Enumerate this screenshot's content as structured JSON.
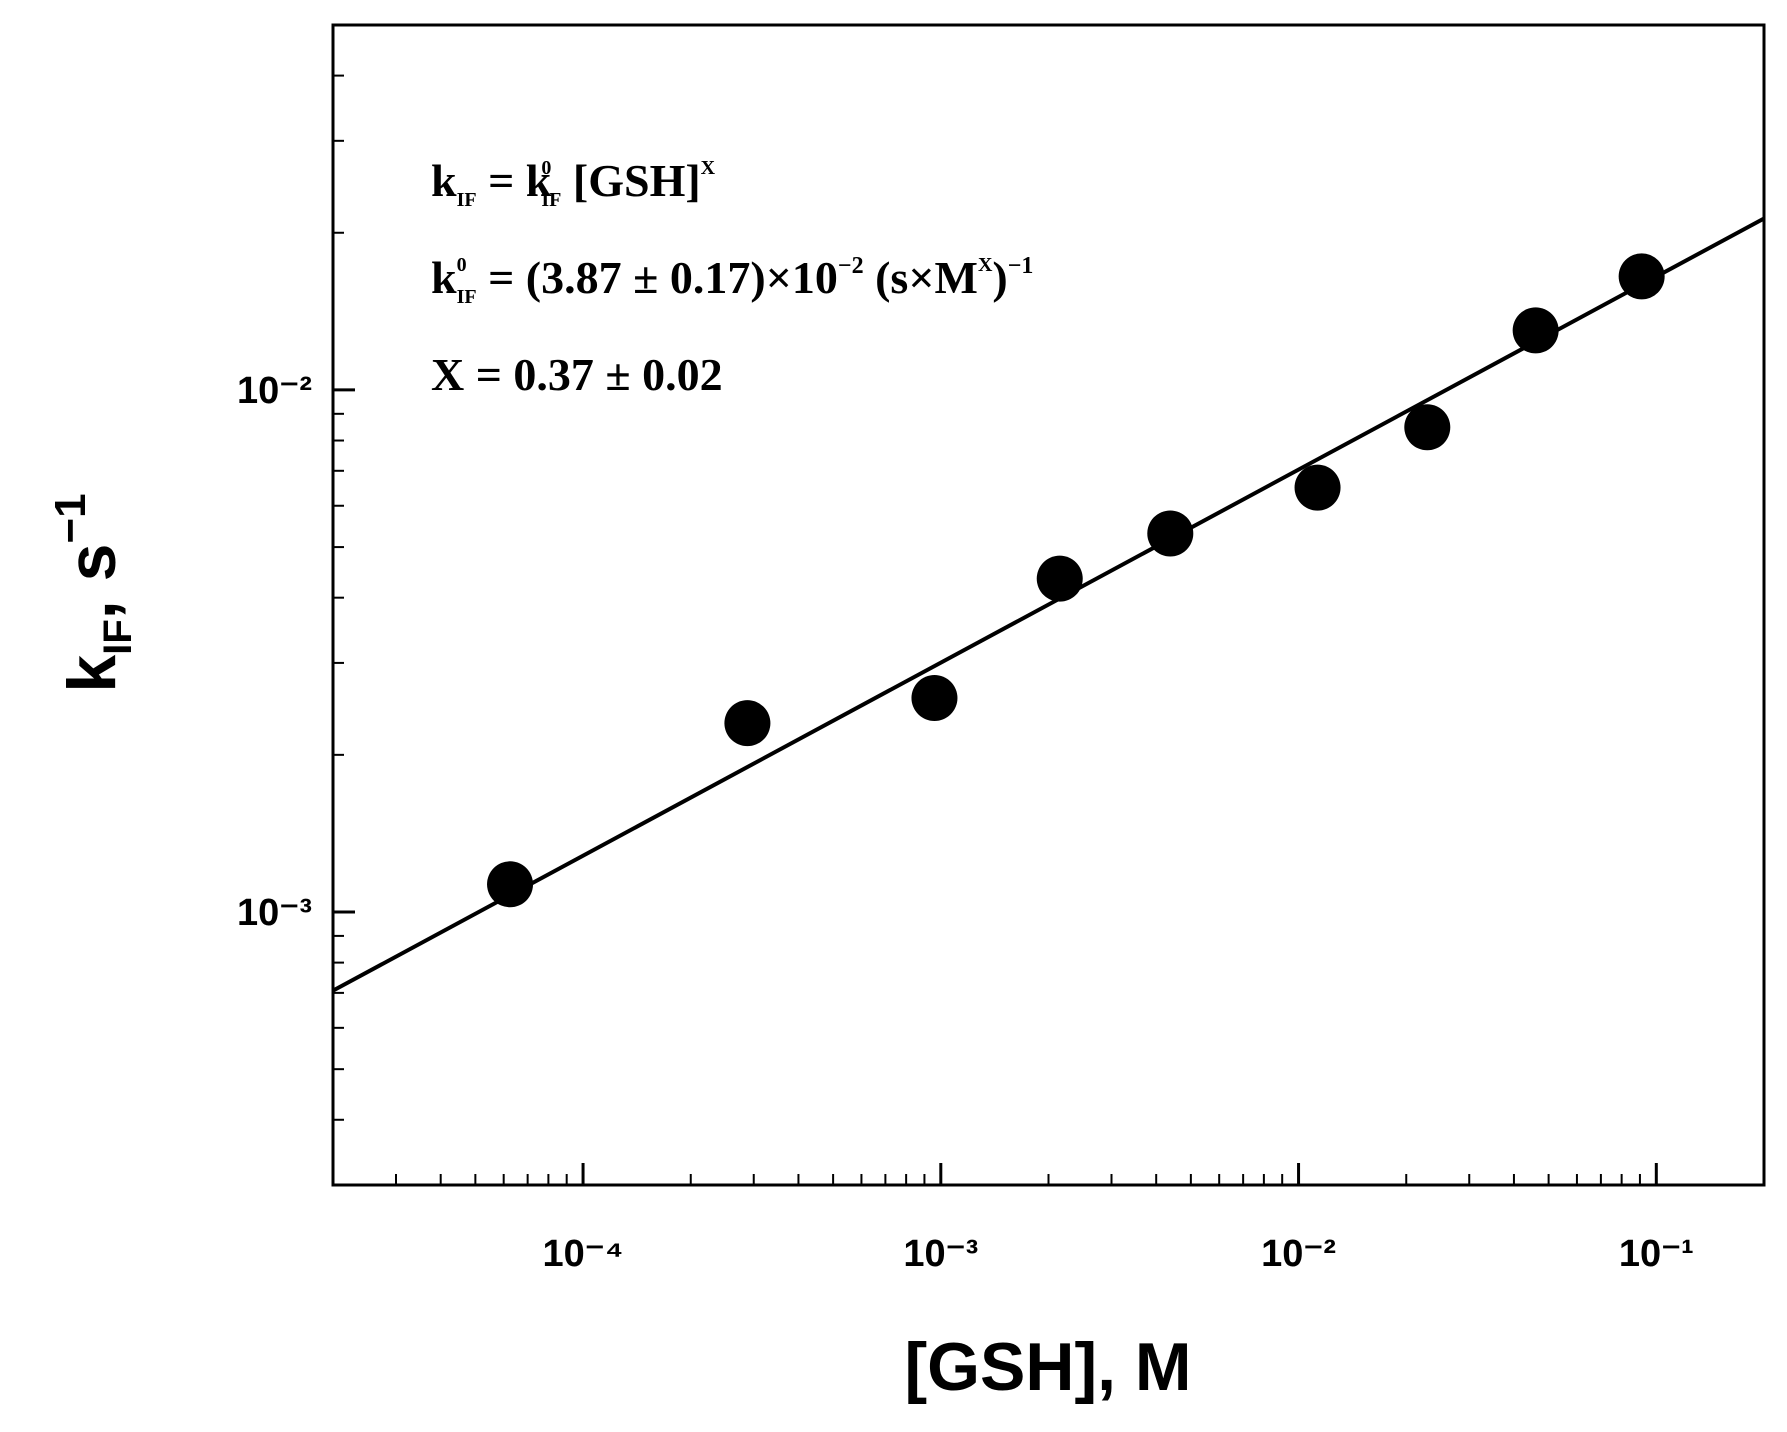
{
  "chart_data": {
    "type": "scatter",
    "x_label": "[GSH], M",
    "y_label": [
      "k",
      "IF",
      ", s",
      "−1"
    ],
    "annotations": [
      [
        "k",
        "IF",
        " = k",
        "0",
        "IF",
        " [GSH]",
        "X"
      ],
      [
        "k",
        "0",
        "IF",
        " = (3.87 ± 0.17)×10",
        "−2",
        " (s×M",
        "X",
        ")",
        "−1"
      ],
      [
        "X = 0.37 ± 0.02"
      ]
    ],
    "xscale": "log",
    "yscale": "log",
    "xlim": [
      2e-05,
      0.2
    ],
    "ylim": [
      0.0003,
      0.05
    ],
    "xticks": [
      {
        "value": 0.0001,
        "label": "10⁻⁴"
      },
      {
        "value": 0.001,
        "label": "10⁻³"
      },
      {
        "value": 0.01,
        "label": "10⁻²"
      },
      {
        "value": 0.1,
        "label": "10⁻¹"
      }
    ],
    "yticks": [
      {
        "value": 0.001,
        "label": "10⁻³"
      },
      {
        "value": 0.01,
        "label": "10⁻²"
      }
    ],
    "xminor": [
      3e-05,
      4e-05,
      5e-05,
      6e-05,
      7e-05,
      8e-05,
      9e-05,
      0.0002,
      0.0003,
      0.0004,
      0.0005,
      0.0006,
      0.0007,
      0.0008,
      0.0009,
      0.002,
      0.003,
      0.004,
      0.005,
      0.006,
      0.007,
      0.008,
      0.009,
      0.02,
      0.03,
      0.04,
      0.05,
      0.06,
      0.07,
      0.08,
      0.09
    ],
    "yminor": [
      0.0004,
      0.0005,
      0.0006,
      0.0007,
      0.0008,
      0.0009,
      0.002,
      0.003,
      0.004,
      0.005,
      0.006,
      0.007,
      0.008,
      0.009,
      0.02,
      0.03,
      0.04
    ],
    "series": [
      {
        "type": "scatter",
        "color": "#000000",
        "x": [
          6.25e-05,
          0.000288,
          0.00096,
          0.00215,
          0.00438,
          0.0113,
          0.0229,
          0.046,
          0.091
        ],
        "values": [
          0.00113,
          0.0023,
          0.00257,
          0.00435,
          0.00531,
          0.0065,
          0.00848,
          0.013,
          0.0165
        ]
      },
      {
        "type": "line",
        "color": "#000000",
        "x": [
          2e-05,
          0.2
        ],
        "values": [
          0.000707,
          0.0213
        ]
      }
    ]
  }
}
